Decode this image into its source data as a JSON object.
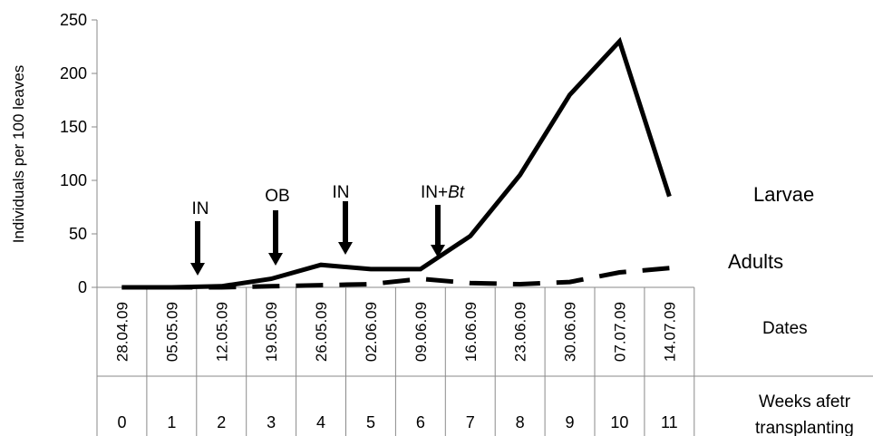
{
  "chart_data": {
    "type": "line",
    "ylabel": "Individuals per 100 leaves",
    "ylim": [
      0,
      250
    ],
    "yticks": [
      "0",
      "50",
      "100",
      "150",
      "200",
      "250"
    ],
    "categories": [
      "28.04.09",
      "05.05.09",
      "12.05.09",
      "19.05.09",
      "26.05.09",
      "02.06.09",
      "09.06.09",
      "16.06.09",
      "23.06.09",
      "30.06.09",
      "07.07.09",
      "14.07.09"
    ],
    "weeks": [
      "0",
      "1",
      "2",
      "3",
      "4",
      "5",
      "6",
      "7",
      "8",
      "9",
      "10",
      "11"
    ],
    "dates_label": "Dates",
    "weeks_label_line1": "Weeks afetr",
    "weeks_label_line2": "transplanting",
    "series": [
      {
        "name": "Larvae",
        "style": "solid",
        "values": [
          0,
          0,
          1,
          8,
          21,
          17,
          17,
          48,
          105,
          180,
          230,
          85
        ]
      },
      {
        "name": "Adults",
        "style": "dashed",
        "values": [
          0,
          0,
          0,
          1,
          2,
          3,
          8,
          4,
          3,
          5,
          14,
          18
        ]
      }
    ],
    "annotations": [
      {
        "category_index": 1,
        "text": "IN",
        "italic": ""
      },
      {
        "category_index": 3,
        "text": "OB",
        "italic": ""
      },
      {
        "category_index": 4,
        "text": "IN",
        "italic": ""
      },
      {
        "category_index": 6,
        "text": "IN+",
        "italic": "Bt"
      }
    ],
    "grid": false,
    "legend": "inline labels at line ends"
  }
}
